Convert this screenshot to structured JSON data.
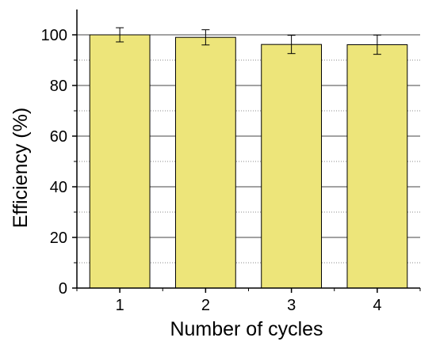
{
  "chart_data": {
    "type": "bar",
    "title": "",
    "xlabel": "Number of cycles",
    "ylabel": "Efficiency (%)",
    "categories": [
      "1",
      "2",
      "3",
      "4"
    ],
    "values": [
      100,
      99,
      96.2,
      96.1
    ],
    "errors": [
      2.8,
      3.0,
      3.6,
      3.8
    ],
    "ylim": [
      0,
      110
    ],
    "yticks": [
      0,
      20,
      40,
      60,
      80,
      100
    ],
    "yticks_minor": [
      10,
      30,
      50,
      70,
      90
    ],
    "grid": "major solid, minor dotted (y only)",
    "bar_color": "#ede57a",
    "bar_edge_color": "#000000"
  }
}
